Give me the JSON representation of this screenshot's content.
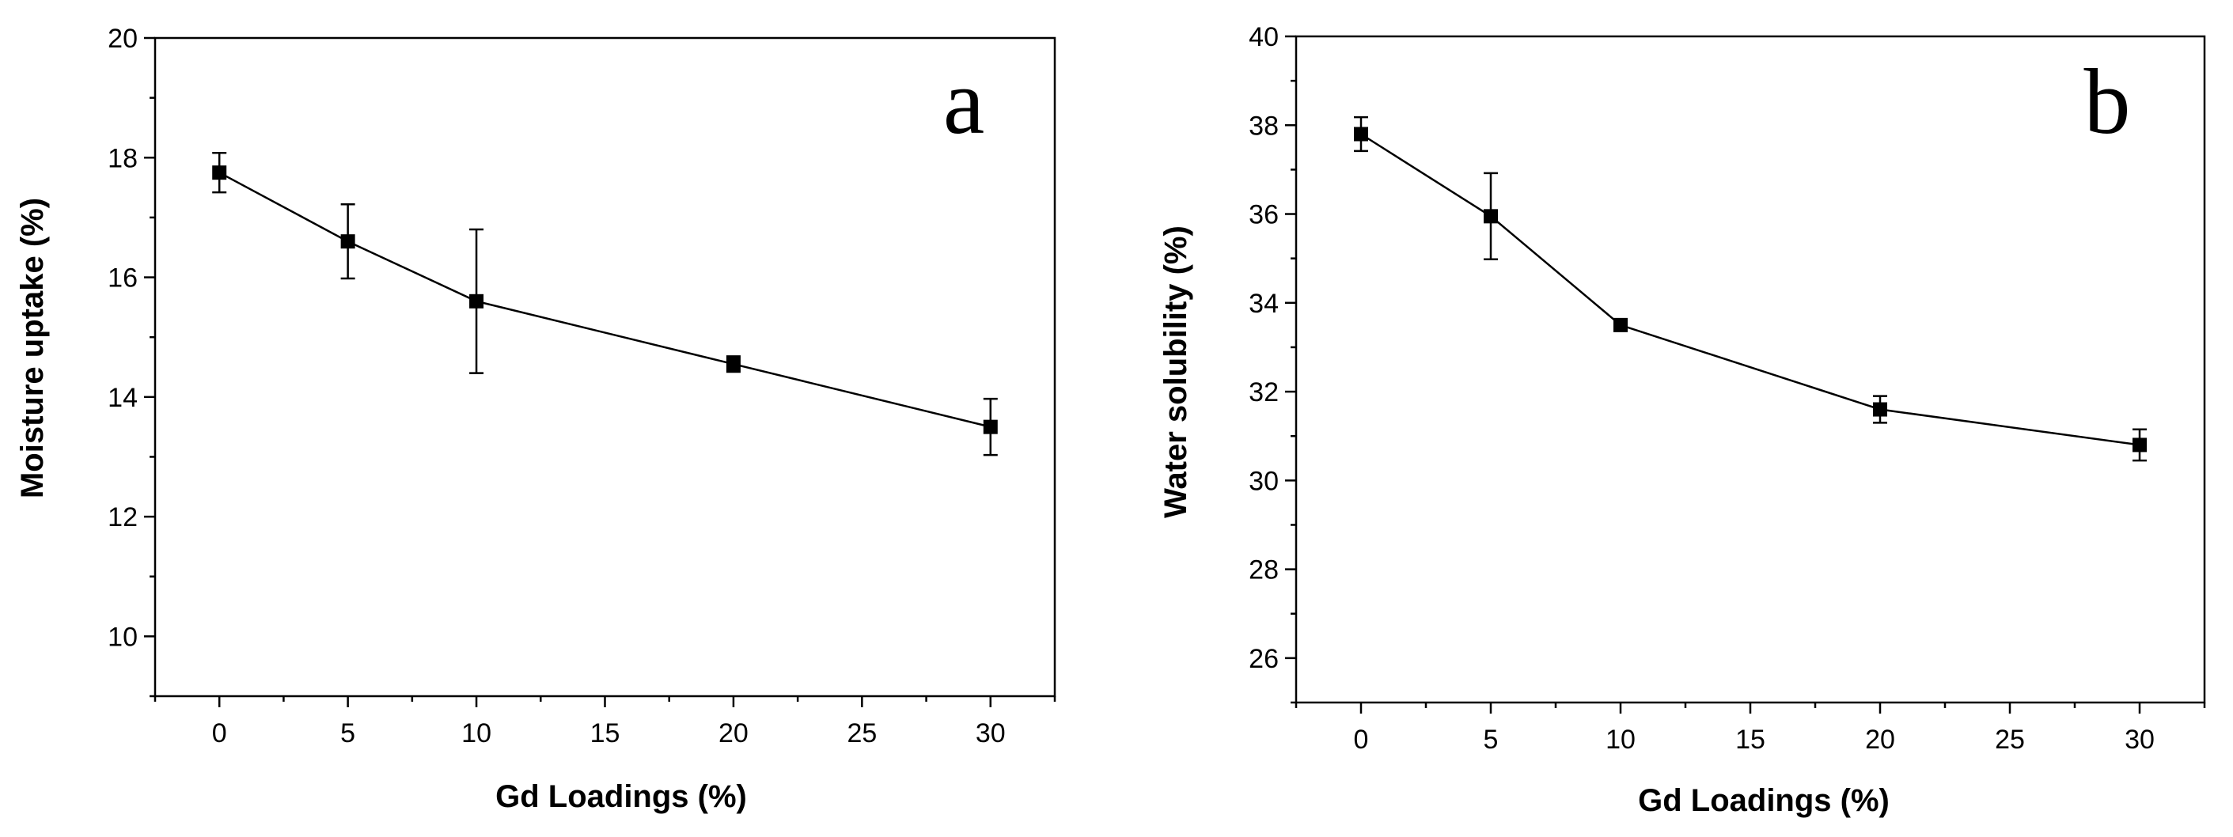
{
  "chart_data": [
    {
      "type": "line",
      "panel_label": "a",
      "title": "",
      "xlabel": "Gd  Loadings (%)",
      "ylabel": "Moisture uptake (%)",
      "xlim": [
        -2.5,
        32.5
      ],
      "ylim": [
        9,
        20
      ],
      "xticks": [
        "0",
        "5",
        "10",
        "15",
        "20",
        "25",
        "30"
      ],
      "yticks": [
        "10",
        "12",
        "14",
        "16",
        "18",
        "20"
      ],
      "grid": false,
      "legend": "none",
      "series": [
        {
          "name": "Moisture uptake",
          "x": [
            0,
            5,
            10,
            20,
            30
          ],
          "values": [
            17.75,
            16.6,
            15.6,
            14.55,
            13.5
          ],
          "errors": [
            0.33,
            0.62,
            1.2,
            0.13,
            0.47
          ]
        }
      ]
    },
    {
      "type": "line",
      "panel_label": "b",
      "title": "",
      "xlabel": "Gd  Loadings (%)",
      "ylabel": "Water solubility (%)",
      "xlim": [
        -2.5,
        32.5
      ],
      "ylim": [
        25,
        40
      ],
      "xticks": [
        "0",
        "5",
        "10",
        "15",
        "20",
        "25",
        "30"
      ],
      "yticks": [
        "26",
        "28",
        "30",
        "32",
        "34",
        "36",
        "38",
        "40"
      ],
      "grid": false,
      "legend": "none",
      "series": [
        {
          "name": "Water solubility",
          "x": [
            0,
            5,
            10,
            20,
            30
          ],
          "values": [
            37.8,
            35.95,
            33.5,
            31.6,
            30.8
          ],
          "errors": [
            0.38,
            0.97,
            0.1,
            0.3,
            0.35
          ]
        }
      ]
    }
  ]
}
